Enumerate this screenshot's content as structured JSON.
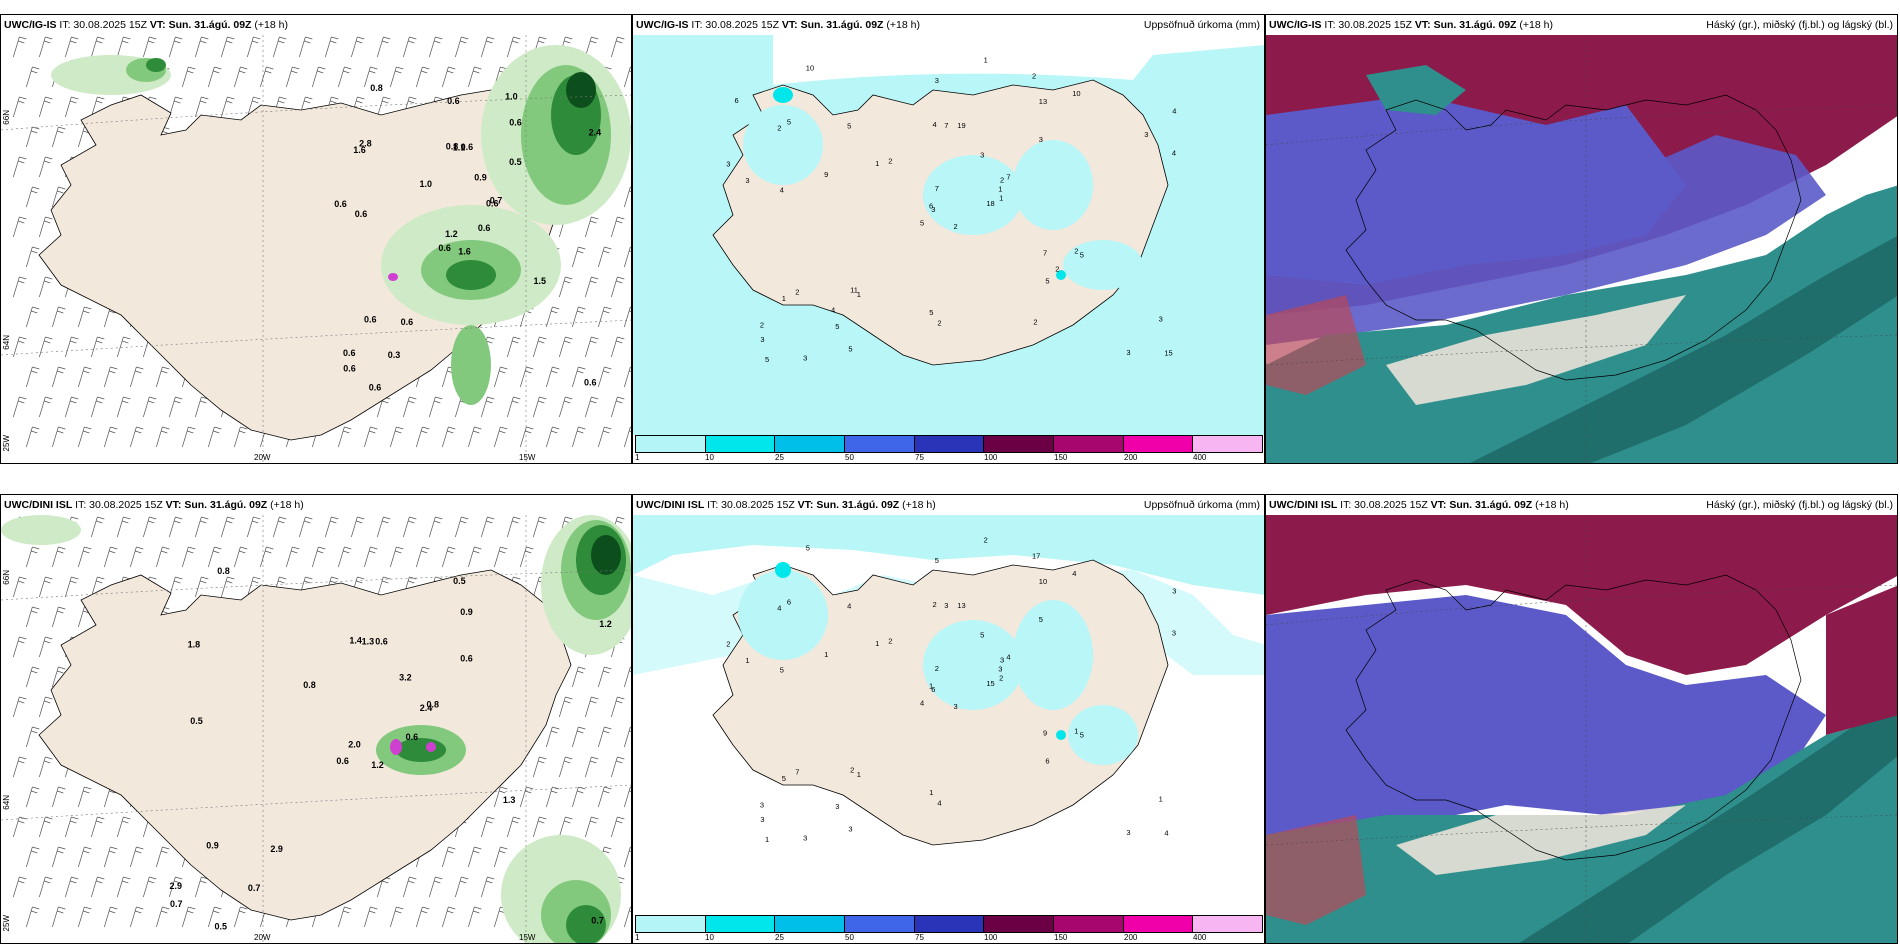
{
  "rows": [
    {
      "model": "UWC/IG-IS",
      "it_label": "IT: 30.08.2025 15Z",
      "vt_prefix": "VT:",
      "vt_value": "Sun. 31.ágú. 09Z",
      "lead": "(+18 h)",
      "wind_panel": {
        "lat_labels": [
          "66N",
          "64N"
        ],
        "lon_labels": [
          "25W",
          "20W",
          "15W"
        ],
        "precip_labels": [
          "1.6",
          "1.6",
          "1.2",
          "0.6",
          "0.6",
          "0.6",
          "1.0",
          "0.6",
          "0.6",
          "0.6",
          "0.8",
          "0.6",
          "0.6",
          "2.4",
          "0.6",
          "0.5",
          "0.6",
          "0.8",
          "0.9",
          "0.6",
          "1.0",
          "0.6",
          "0.3",
          "1.1",
          "0.7",
          "1.5",
          "2.8",
          "0.6",
          "0.6"
        ]
      },
      "precip_panel": {
        "title": "Uppsöfnuð úrkoma (mm)",
        "values": [
          "2",
          "2",
          "3",
          "2",
          "2",
          "1",
          "2",
          "19",
          "13",
          "18",
          "10",
          "15",
          "4",
          "4",
          "5",
          "3",
          "3",
          "4",
          "3",
          "2",
          "2",
          "3",
          "5",
          "7",
          "7",
          "5",
          "5",
          "3",
          "3",
          "7",
          "4",
          "6",
          "5",
          "7",
          "5",
          "10",
          "11",
          "3",
          "3",
          "2",
          "1",
          "1",
          "9",
          "5",
          "5",
          "3",
          "1",
          "5",
          "2",
          "1",
          "1",
          "3",
          "6",
          "2",
          "2",
          "4"
        ]
      },
      "cloud_panel": {
        "title": "Háský (gr.), miðský (fj.bl.) og lágský (bl.)"
      }
    },
    {
      "model": "UWC/DINI ISL",
      "it_label": "IT: 30.08.2025 15Z",
      "vt_prefix": "VT:",
      "vt_value": "Sun. 31.ágú. 09Z",
      "lead": "(+18 h)",
      "wind_panel": {
        "lat_labels": [
          "66N",
          "64N"
        ],
        "lon_labels": [
          "25W",
          "20W",
          "15W"
        ],
        "precip_labels": [
          "1.2",
          "1.8",
          "2.0",
          "2.9",
          "2.4",
          "2.9",
          "0.5",
          "0.6",
          "0.9",
          "0.6",
          "0.8",
          "0.7",
          "0.5",
          "1.2",
          "0.6",
          "0.6",
          "0.5",
          "1.4",
          "3.2",
          "0.9",
          "0.8",
          "0.7",
          "0.7",
          "1.3",
          "0.8",
          "1.3"
        ]
      },
      "precip_panel": {
        "title": "Uppsöfnuð úrkoma (mm)",
        "values": [
          "3",
          "4",
          "6",
          "3",
          "3",
          "1",
          "17",
          "13",
          "10",
          "15",
          "5",
          "4",
          "5",
          "3",
          "4",
          "5",
          "3",
          "2",
          "5",
          "7",
          "2",
          "3",
          "3",
          "3",
          "4",
          "5",
          "6",
          "5",
          "1",
          "9",
          "3",
          "1",
          "1",
          "2",
          "4",
          "4",
          "2",
          "3",
          "1",
          "1",
          "2",
          "1",
          "1",
          "6",
          "3",
          "2",
          "3",
          "1",
          "4",
          "2",
          "5"
        ]
      },
      "cloud_panel": {
        "title": "Háský (gr.), miðský (fj.bl.) og lágský (bl.)"
      }
    }
  ],
  "colorbar": {
    "ticks": [
      "1",
      "10",
      "25",
      "50",
      "75",
      "100",
      "150",
      "200",
      "400"
    ],
    "colors": [
      "#b4f6f8",
      "#00e6ea",
      "#00bfe8",
      "#3f66e8",
      "#2a34b8",
      "#6c0044",
      "#a6066e",
      "#f000a8",
      "#f7b6f2"
    ]
  },
  "palette": {
    "land": "#f3e8dc",
    "sea": "#ffffff",
    "precip_light": "#cfeac6",
    "precip_mid": "#82c97d",
    "precip_heavy": "#2e8b3a",
    "precip_dark": "#0c4f1c",
    "cyan_precip": "#b8f6f8",
    "high_cloud": "#8c1a4a",
    "mid_cloud": "#5b5ac8",
    "low_cloud": "#2f8f8c"
  }
}
